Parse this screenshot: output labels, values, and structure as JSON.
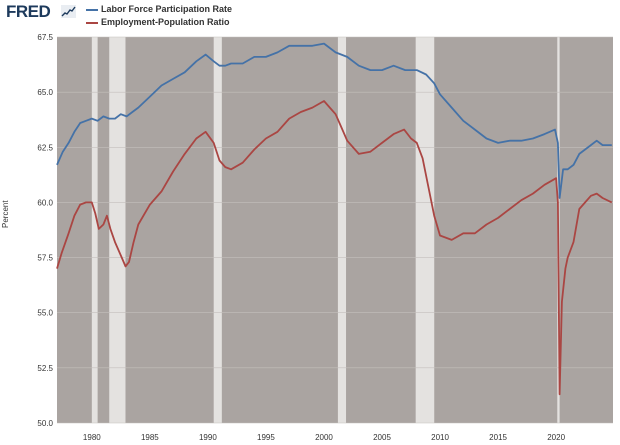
{
  "header": {
    "logo_text": "FRED",
    "logo_icon": "fred-sparkline-icon"
  },
  "colors": {
    "plot_background": "#aaa4a1",
    "recession_band": "#e4e2e0",
    "grid": "#c4bfbc"
  },
  "chart_data": {
    "type": "line",
    "title": "",
    "xlabel": "",
    "ylabel": "Percent",
    "xlim": [
      1977,
      2024.9
    ],
    "ylim": [
      50.0,
      67.5
    ],
    "grid": true,
    "legend_position": "top-left",
    "y_ticks": [
      "50.0",
      "52.5",
      "55.0",
      "57.5",
      "60.0",
      "62.5",
      "65.0",
      "67.5"
    ],
    "x_ticks": [
      "1980",
      "1985",
      "1990",
      "1995",
      "2000",
      "2005",
      "2010",
      "2015",
      "2020"
    ],
    "recession_bands": [
      [
        1980.0,
        1980.5
      ],
      [
        1981.5,
        1982.9
      ],
      [
        1990.5,
        1991.2
      ],
      [
        2001.2,
        2001.9
      ],
      [
        2007.9,
        2009.5
      ],
      [
        2020.1,
        2020.3
      ]
    ],
    "series": [
      {
        "name": "Labor Force Participation Rate",
        "color": "#4572a7",
        "points": [
          [
            1977.0,
            61.7
          ],
          [
            1977.5,
            62.3
          ],
          [
            1978.0,
            62.7
          ],
          [
            1978.5,
            63.2
          ],
          [
            1979.0,
            63.6
          ],
          [
            1979.5,
            63.7
          ],
          [
            1980.0,
            63.8
          ],
          [
            1980.5,
            63.7
          ],
          [
            1981.0,
            63.9
          ],
          [
            1981.5,
            63.8
          ],
          [
            1982.0,
            63.8
          ],
          [
            1982.5,
            64.0
          ],
          [
            1983.0,
            63.9
          ],
          [
            1983.5,
            64.1
          ],
          [
            1984.0,
            64.3
          ],
          [
            1985.0,
            64.8
          ],
          [
            1986.0,
            65.3
          ],
          [
            1987.0,
            65.6
          ],
          [
            1988.0,
            65.9
          ],
          [
            1989.0,
            66.4
          ],
          [
            1989.8,
            66.7
          ],
          [
            1990.5,
            66.4
          ],
          [
            1991.0,
            66.2
          ],
          [
            1991.5,
            66.2
          ],
          [
            1992.0,
            66.3
          ],
          [
            1993.0,
            66.3
          ],
          [
            1994.0,
            66.6
          ],
          [
            1995.0,
            66.6
          ],
          [
            1996.0,
            66.8
          ],
          [
            1997.0,
            67.1
          ],
          [
            1998.0,
            67.1
          ],
          [
            1999.0,
            67.1
          ],
          [
            2000.0,
            67.2
          ],
          [
            2000.5,
            67.0
          ],
          [
            2001.0,
            66.8
          ],
          [
            2002.0,
            66.6
          ],
          [
            2003.0,
            66.2
          ],
          [
            2004.0,
            66.0
          ],
          [
            2005.0,
            66.0
          ],
          [
            2006.0,
            66.2
          ],
          [
            2007.0,
            66.0
          ],
          [
            2008.0,
            66.0
          ],
          [
            2008.8,
            65.8
          ],
          [
            2009.5,
            65.4
          ],
          [
            2010.0,
            64.9
          ],
          [
            2011.0,
            64.3
          ],
          [
            2012.0,
            63.7
          ],
          [
            2013.0,
            63.3
          ],
          [
            2014.0,
            62.9
          ],
          [
            2015.0,
            62.7
          ],
          [
            2016.0,
            62.8
          ],
          [
            2017.0,
            62.8
          ],
          [
            2018.0,
            62.9
          ],
          [
            2019.0,
            63.1
          ],
          [
            2019.9,
            63.3
          ],
          [
            2020.15,
            62.7
          ],
          [
            2020.3,
            60.2
          ],
          [
            2020.6,
            61.5
          ],
          [
            2021.0,
            61.5
          ],
          [
            2021.5,
            61.7
          ],
          [
            2022.0,
            62.2
          ],
          [
            2023.0,
            62.6
          ],
          [
            2023.5,
            62.8
          ],
          [
            2024.0,
            62.6
          ],
          [
            2024.8,
            62.6
          ]
        ]
      },
      {
        "name": "Employment-Population Ratio",
        "color": "#aa4643",
        "points": [
          [
            1977.0,
            57.0
          ],
          [
            1977.4,
            57.7
          ],
          [
            1978.0,
            58.6
          ],
          [
            1978.5,
            59.4
          ],
          [
            1979.0,
            59.9
          ],
          [
            1979.5,
            60.0
          ],
          [
            1980.0,
            60.0
          ],
          [
            1980.3,
            59.5
          ],
          [
            1980.6,
            58.8
          ],
          [
            1981.0,
            59.0
          ],
          [
            1981.3,
            59.4
          ],
          [
            1981.6,
            58.8
          ],
          [
            1982.0,
            58.2
          ],
          [
            1982.5,
            57.6
          ],
          [
            1982.9,
            57.1
          ],
          [
            1983.2,
            57.3
          ],
          [
            1983.6,
            58.2
          ],
          [
            1984.0,
            59.0
          ],
          [
            1985.0,
            59.9
          ],
          [
            1986.0,
            60.5
          ],
          [
            1987.0,
            61.4
          ],
          [
            1988.0,
            62.2
          ],
          [
            1989.0,
            62.9
          ],
          [
            1989.8,
            63.2
          ],
          [
            1990.5,
            62.7
          ],
          [
            1991.0,
            61.9
          ],
          [
            1991.5,
            61.6
          ],
          [
            1992.0,
            61.5
          ],
          [
            1993.0,
            61.8
          ],
          [
            1994.0,
            62.4
          ],
          [
            1995.0,
            62.9
          ],
          [
            1996.0,
            63.2
          ],
          [
            1997.0,
            63.8
          ],
          [
            1998.0,
            64.1
          ],
          [
            1999.0,
            64.3
          ],
          [
            2000.0,
            64.6
          ],
          [
            2000.5,
            64.3
          ],
          [
            2001.0,
            64.0
          ],
          [
            2001.5,
            63.4
          ],
          [
            2002.0,
            62.8
          ],
          [
            2003.0,
            62.2
          ],
          [
            2004.0,
            62.3
          ],
          [
            2005.0,
            62.7
          ],
          [
            2006.0,
            63.1
          ],
          [
            2006.9,
            63.3
          ],
          [
            2007.5,
            62.9
          ],
          [
            2008.0,
            62.7
          ],
          [
            2008.5,
            62.0
          ],
          [
            2009.0,
            60.7
          ],
          [
            2009.5,
            59.4
          ],
          [
            2010.0,
            58.5
          ],
          [
            2011.0,
            58.3
          ],
          [
            2012.0,
            58.6
          ],
          [
            2013.0,
            58.6
          ],
          [
            2014.0,
            59.0
          ],
          [
            2015.0,
            59.3
          ],
          [
            2016.0,
            59.7
          ],
          [
            2017.0,
            60.1
          ],
          [
            2018.0,
            60.4
          ],
          [
            2019.0,
            60.8
          ],
          [
            2020.0,
            61.1
          ],
          [
            2020.15,
            60.0
          ],
          [
            2020.3,
            51.3
          ],
          [
            2020.5,
            55.5
          ],
          [
            2020.8,
            57.0
          ],
          [
            2021.0,
            57.5
          ],
          [
            2021.5,
            58.2
          ],
          [
            2022.0,
            59.7
          ],
          [
            2022.5,
            60.0
          ],
          [
            2023.0,
            60.3
          ],
          [
            2023.5,
            60.4
          ],
          [
            2024.0,
            60.2
          ],
          [
            2024.8,
            60.0
          ]
        ]
      }
    ]
  }
}
